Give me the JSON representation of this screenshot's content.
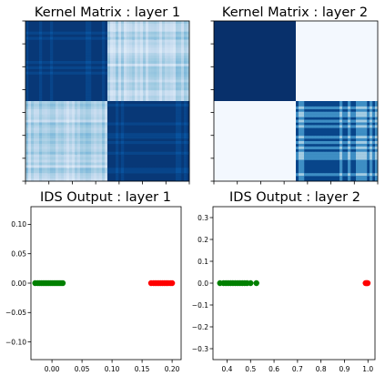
{
  "figure": {
    "background": "#ffffff"
  },
  "chart_data": [
    {
      "type": "heatmap",
      "title": "Kernel Matrix : layer 1",
      "colormap": "Blues",
      "grid": false,
      "axis_tick_labels": false,
      "blocks": [
        {
          "rows": [
            0,
            0.5
          ],
          "cols": [
            0,
            0.5
          ],
          "level": 0.97,
          "texture": "faint-stripes"
        },
        {
          "rows": [
            0,
            0.5
          ],
          "cols": [
            0.5,
            1
          ],
          "level": 0.3,
          "texture": "light-stripes"
        },
        {
          "rows": [
            0.5,
            1
          ],
          "cols": [
            0,
            0.5
          ],
          "level": 0.3,
          "texture": "light-stripes"
        },
        {
          "rows": [
            0.5,
            1
          ],
          "cols": [
            0.5,
            1
          ],
          "level": 0.97,
          "texture": "faint-stripes"
        }
      ]
    },
    {
      "type": "heatmap",
      "title": "Kernel Matrix : layer 2",
      "colormap": "Blues",
      "grid": false,
      "axis_tick_labels": false,
      "blocks": [
        {
          "rows": [
            0,
            0.5
          ],
          "cols": [
            0,
            0.5
          ],
          "level": 1.0,
          "texture": "none"
        },
        {
          "rows": [
            0,
            0.5
          ],
          "cols": [
            0.5,
            1
          ],
          "level": 0.02,
          "texture": "none"
        },
        {
          "rows": [
            0.5,
            1
          ],
          "cols": [
            0,
            0.5
          ],
          "level": 0.02,
          "texture": "none"
        },
        {
          "rows": [
            0.5,
            1
          ],
          "cols": [
            0.5,
            1
          ],
          "level": 0.92,
          "texture": "grid-stripes"
        }
      ]
    },
    {
      "type": "scatter",
      "title": "IDS Output : layer 1",
      "xlabel": "",
      "ylabel": "",
      "xlim": [
        -0.035,
        0.215
      ],
      "ylim": [
        -0.13,
        0.13
      ],
      "xticks": [
        "0.00",
        "0.05",
        "0.10",
        "0.15",
        "0.20"
      ],
      "xtick_values": [
        0.0,
        0.05,
        0.1,
        0.15,
        0.2
      ],
      "yticks": [
        "0.10",
        "0.05",
        "0.00",
        "−0.05",
        "−0.10"
      ],
      "ytick_values": [
        0.1,
        0.05,
        0.0,
        -0.05,
        -0.1
      ],
      "series": [
        {
          "color": "#008000",
          "x": [
            -0.028,
            -0.024,
            -0.021,
            -0.018,
            -0.015,
            -0.012,
            -0.009,
            -0.006,
            -0.003,
            0.0,
            0.003,
            0.006,
            0.009,
            0.012,
            0.015,
            0.018
          ],
          "y": [
            0,
            0,
            0,
            0,
            0,
            0,
            0,
            0,
            0,
            0,
            0,
            0,
            0,
            0,
            0,
            0
          ]
        },
        {
          "color": "#ff0000",
          "x": [
            0.165,
            0.169,
            0.172,
            0.175,
            0.178,
            0.181,
            0.184,
            0.187,
            0.19,
            0.193,
            0.197,
            0.2
          ],
          "y": [
            0,
            0,
            0,
            0,
            0,
            0,
            0,
            0,
            0,
            0,
            0,
            0
          ]
        }
      ]
    },
    {
      "type": "scatter",
      "title": "IDS Output : layer 2",
      "xlabel": "",
      "ylabel": "",
      "xlim": [
        0.34,
        1.03
      ],
      "ylim": [
        -0.35,
        0.35
      ],
      "xticks": [
        "0.4",
        "0.5",
        "0.6",
        "0.7",
        "0.8",
        "0.9",
        "1.0"
      ],
      "xtick_values": [
        0.4,
        0.5,
        0.6,
        0.7,
        0.8,
        0.9,
        1.0
      ],
      "yticks": [
        "0.3",
        "0.2",
        "0.1",
        "0.0",
        "−0.1",
        "−0.2",
        "−0.3"
      ],
      "ytick_values": [
        0.3,
        0.2,
        0.1,
        0.0,
        -0.1,
        -0.2,
        -0.3
      ],
      "series": [
        {
          "color": "#008000",
          "x": [
            0.37,
            0.385,
            0.395,
            0.405,
            0.415,
            0.425,
            0.435,
            0.445,
            0.455,
            0.465,
            0.475,
            0.485,
            0.5,
            0.525
          ],
          "y": [
            0,
            0,
            0,
            0,
            0,
            0,
            0,
            0,
            0,
            0,
            0,
            0,
            0,
            0
          ]
        },
        {
          "color": "#ff0000",
          "x": [
            0.99,
            0.993,
            0.996,
            0.999
          ],
          "y": [
            0,
            0,
            0,
            0
          ]
        }
      ]
    }
  ]
}
